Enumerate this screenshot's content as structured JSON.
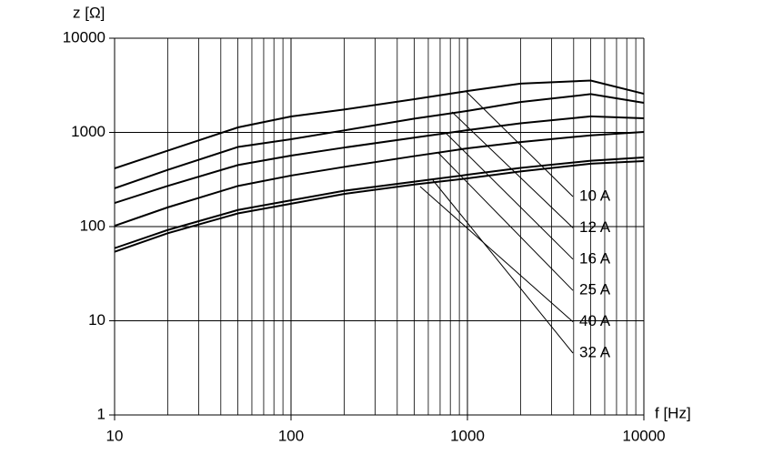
{
  "chart_data": {
    "type": "line",
    "xlabel": "f [Hz]",
    "ylabel": "z [Ω]",
    "log_x": true,
    "log_y": true,
    "grid": true,
    "x": [
      10,
      20,
      50,
      100,
      200,
      500,
      1000,
      2000,
      5000,
      10000
    ],
    "series": [
      {
        "name": "10 A",
        "color": "#000000",
        "values": [
          415,
          640,
          1130,
          1475,
          1750,
          2250,
          2750,
          3300,
          3550,
          2570
        ]
      },
      {
        "name": "12 A",
        "color": "#000000",
        "values": [
          255,
          400,
          700,
          847,
          1050,
          1400,
          1690,
          2100,
          2550,
          2060
        ]
      },
      {
        "name": "16 A",
        "color": "#000000",
        "values": [
          178,
          270,
          450,
          567,
          690,
          880,
          1057,
          1250,
          1480,
          1410
        ]
      },
      {
        "name": "25 A",
        "color": "#000000",
        "values": [
          102,
          160,
          270,
          348,
          430,
          560,
          677,
          790,
          930,
          1010
        ]
      },
      {
        "name": "40 A",
        "color": "#000000",
        "values": [
          59,
          92,
          150,
          190,
          240,
          300,
          355,
          420,
          500,
          542
        ]
      },
      {
        "name": "32 A",
        "color": "#000000",
        "values": [
          54,
          85,
          138,
          175,
          222,
          280,
          325,
          385,
          465,
          496
        ]
      }
    ],
    "xlim": [
      10,
      10000
    ],
    "ylim": [
      1,
      10000
    ],
    "xticks": [
      10,
      100,
      1000,
      10000
    ],
    "yticks": [
      1,
      10,
      100,
      1000,
      10000
    ],
    "xminor": [
      20,
      30,
      40,
      50,
      60,
      70,
      80,
      90,
      200,
      300,
      400,
      500,
      600,
      700,
      800,
      900,
      2000,
      3000,
      4000,
      5000,
      6000,
      7000,
      8000,
      9000
    ]
  }
}
